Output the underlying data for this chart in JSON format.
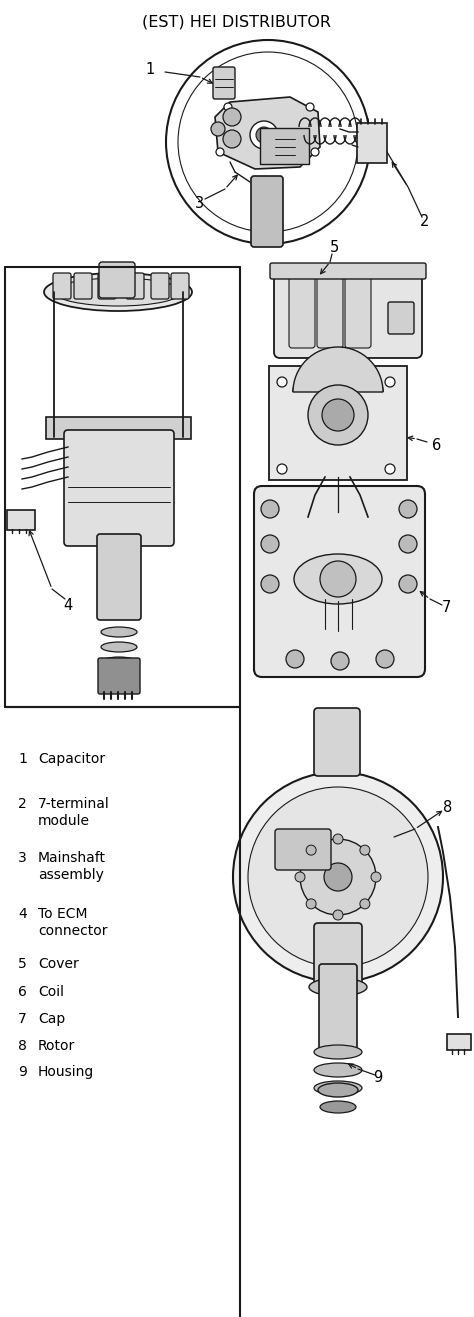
{
  "title": "(EST) HEI DISTRIBUTOR",
  "title_fontsize": 11.5,
  "background_color": "#ffffff",
  "fig_width": 4.74,
  "fig_height": 13.17,
  "dpi": 100,
  "legend_items": [
    {
      "num": "1",
      "label": "Capacitor"
    },
    {
      "num": "2",
      "label": "7-terminal\nmodule"
    },
    {
      "num": "3",
      "label": "Mainshaft\nassembly"
    },
    {
      "num": "4",
      "label": "To ECM\nconnector"
    },
    {
      "num": "5",
      "label": "Cover"
    },
    {
      "num": "6",
      "label": "Coil"
    },
    {
      "num": "7",
      "label": "Cap"
    },
    {
      "num": "8",
      "label": "Rotor"
    },
    {
      "num": "9",
      "label": "Housing"
    }
  ],
  "lc": "#1a1a1a",
  "gray1": "#aaaaaa",
  "gray2": "#cccccc",
  "gray3": "#888888",
  "gray4": "#666666",
  "gray5": "#444444"
}
